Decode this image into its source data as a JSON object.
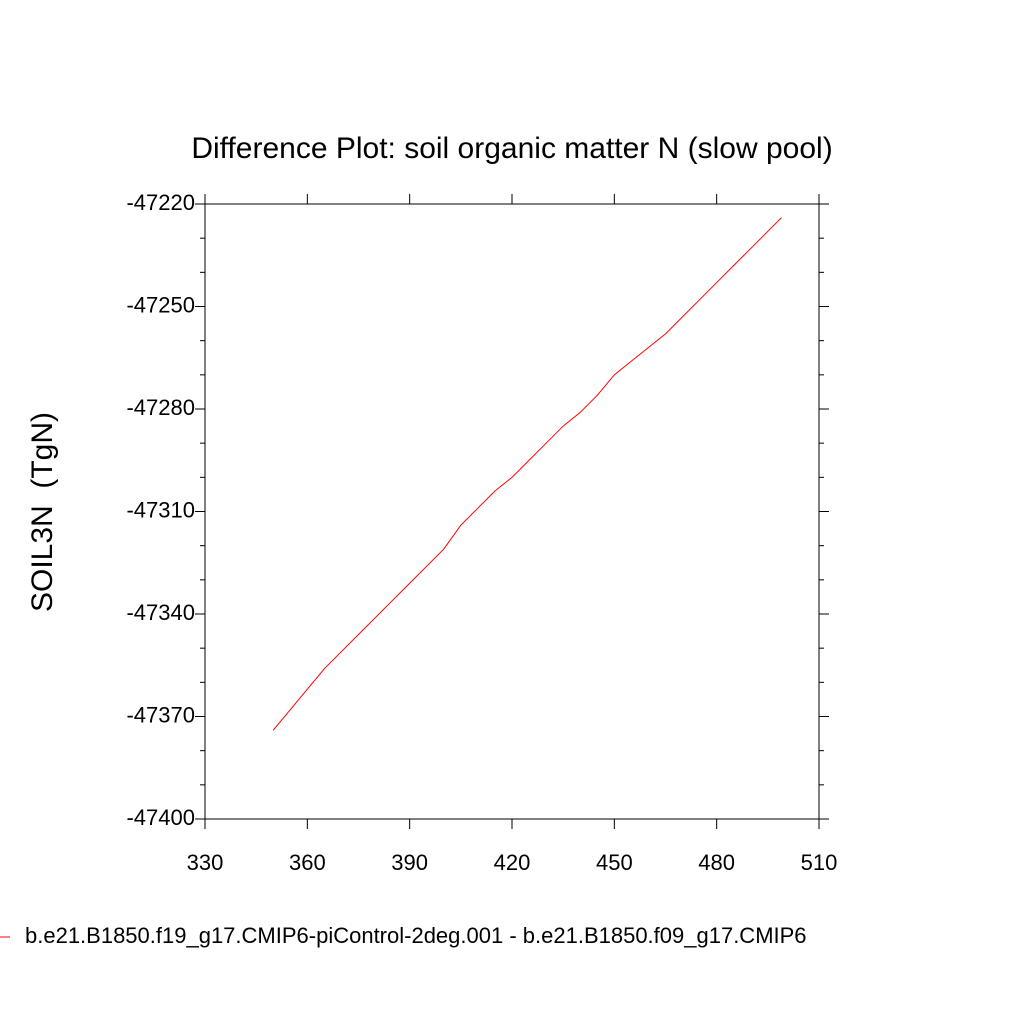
{
  "chart_data": {
    "type": "line",
    "title": "Difference Plot: soil organic matter N (slow pool)",
    "y_label": "SOIL3N  (TgN)",
    "x": [
      350,
      355,
      360,
      365,
      370,
      375,
      380,
      385,
      390,
      395,
      400,
      405,
      410,
      415,
      420,
      425,
      430,
      435,
      440,
      445,
      450,
      455,
      460,
      465,
      470,
      475,
      480,
      485,
      490,
      495,
      499
    ],
    "series": [
      {
        "name": "b.e21.B1850.f19_g17.CMIP6-piControl-2deg.001 - b.e21.B1850.f09_g17.CMIP6",
        "color": "#ff0000",
        "values": [
          -47374,
          -47368,
          -47362,
          -47356,
          -47351,
          -47346,
          -47341,
          -47336,
          -47331,
          -47326,
          -47321,
          -47314,
          -47309,
          -47304,
          -47300,
          -47295,
          -47290,
          -47285,
          -47281,
          -47276,
          -47270,
          -47266,
          -47262,
          -47258,
          -47253,
          -47248,
          -47243,
          -47238,
          -47233,
          -47228,
          -47224
        ]
      }
    ],
    "xlim": [
      330,
      510
    ],
    "xticks": [
      330,
      360,
      390,
      420,
      450,
      480,
      510
    ],
    "ylim": [
      -47400,
      -47220
    ],
    "yticks": [
      -47400,
      -47370,
      -47340,
      -47310,
      -47280,
      -47250,
      -47220
    ],
    "yminorticks": [
      -47390,
      -47380,
      -47360,
      -47350,
      -47330,
      -47320,
      -47300,
      -47290,
      -47270,
      -47260,
      -47240,
      -47230
    ],
    "grid": false
  }
}
